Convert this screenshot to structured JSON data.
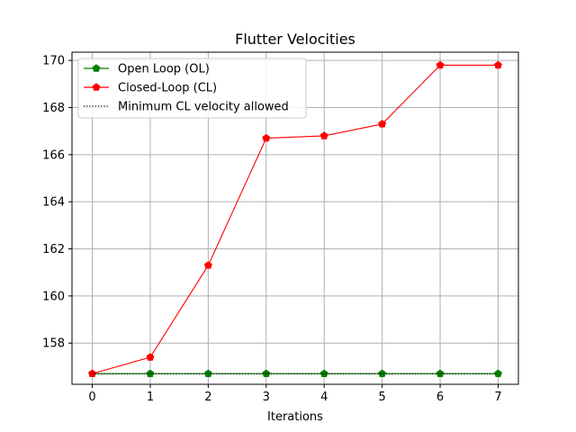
{
  "chart_data": {
    "type": "line",
    "title": "Flutter Velocities",
    "xlabel": "Iterations",
    "ylabel": "",
    "x": [
      0,
      1,
      2,
      3,
      4,
      5,
      6,
      7
    ],
    "xlim": [
      -0.35,
      7.35
    ],
    "ylim": [
      156.25,
      170.35
    ],
    "xticks": [
      0,
      1,
      2,
      3,
      4,
      5,
      6,
      7
    ],
    "yticks": [
      158,
      160,
      162,
      164,
      166,
      168,
      170
    ],
    "grid": true,
    "legend_position": "top-left",
    "series": [
      {
        "name": "Open Loop (OL)",
        "color": "#008000",
        "marker": "pentagon",
        "linestyle": "solid",
        "values": [
          156.7,
          156.7,
          156.7,
          156.7,
          156.7,
          156.7,
          156.7,
          156.7
        ]
      },
      {
        "name": "Closed-Loop (CL)",
        "color": "#ff0000",
        "marker": "pentagon",
        "linestyle": "solid",
        "values": [
          156.7,
          157.4,
          161.3,
          166.7,
          166.8,
          167.3,
          169.8,
          169.8
        ]
      },
      {
        "name": "Minimum CL velocity allowed",
        "color": "#000000",
        "marker": "none",
        "linestyle": "dotted",
        "values": [
          156.7,
          156.7,
          156.7,
          156.7,
          156.7,
          156.7,
          156.7,
          156.7
        ]
      }
    ]
  }
}
